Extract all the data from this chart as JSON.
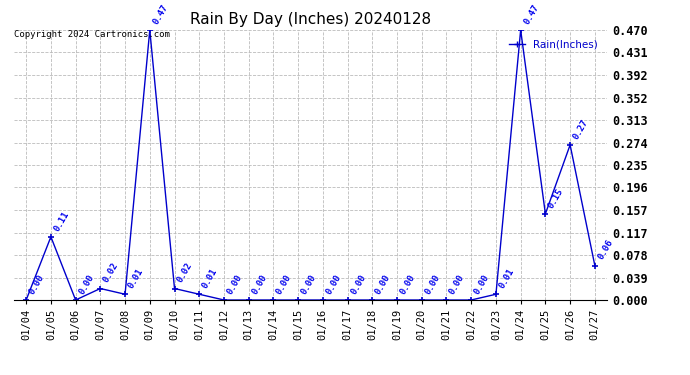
{
  "title": "Rain By Day (Inches) 20240128",
  "dates": [
    "01/04",
    "01/05",
    "01/06",
    "01/07",
    "01/08",
    "01/09",
    "01/10",
    "01/11",
    "01/12",
    "01/13",
    "01/14",
    "01/15",
    "01/16",
    "01/17",
    "01/18",
    "01/19",
    "01/20",
    "01/21",
    "01/22",
    "01/23",
    "01/24",
    "01/25",
    "01/26",
    "01/27"
  ],
  "values": [
    0.0,
    0.11,
    0.0,
    0.02,
    0.01,
    0.47,
    0.02,
    0.01,
    0.0,
    0.0,
    0.0,
    0.0,
    0.0,
    0.0,
    0.0,
    0.0,
    0.0,
    0.0,
    0.0,
    0.01,
    0.47,
    0.15,
    0.27,
    0.06
  ],
  "line_color": "#0000cc",
  "marker": "+",
  "marker_size": 5,
  "annotation_color": "#0000ee",
  "annotation_fontsize": 6.5,
  "title_fontsize": 11,
  "xlabel_fontsize": 7.5,
  "ylabel_right_fontsize": 8.5,
  "legend_label": "Rain(Inches)",
  "legend_color": "#0000cc",
  "copyright_text": "Copyright 2024 Cartronics.com",
  "copyright_fontsize": 6.5,
  "copyright_color": "#000000",
  "ylim_max": 0.47,
  "yticks": [
    0.0,
    0.039,
    0.078,
    0.117,
    0.157,
    0.196,
    0.235,
    0.274,
    0.313,
    0.352,
    0.392,
    0.431,
    0.47
  ],
  "background_color": "#ffffff",
  "grid_color": "#bbbbbb",
  "fig_width": 6.9,
  "fig_height": 3.75,
  "dpi": 100
}
